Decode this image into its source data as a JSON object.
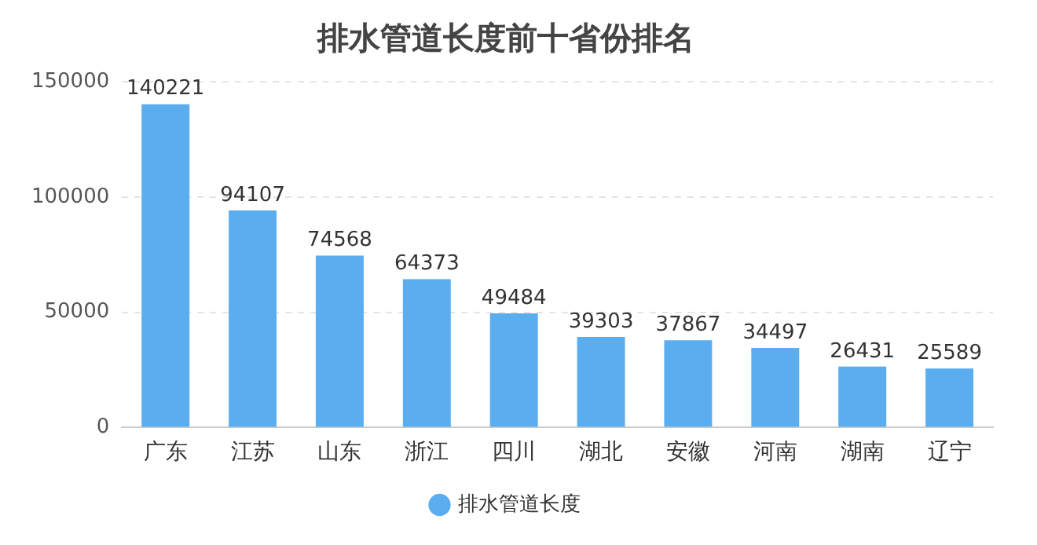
{
  "chart_data": {
    "type": "bar",
    "title": "排水管道长度前十省份排名",
    "categories": [
      "广东",
      "江苏",
      "山东",
      "浙江",
      "四川",
      "湖北",
      "安徽",
      "河南",
      "湖南",
      "辽宁"
    ],
    "series": [
      {
        "name": "排水管道长度",
        "color": "#5aaef0",
        "values": [
          140221,
          94107,
          74568,
          64373,
          49484,
          39303,
          37867,
          34497,
          26431,
          25589
        ]
      }
    ],
    "ylim": [
      0,
      150000
    ],
    "yticks": [
      0,
      50000,
      100000,
      150000
    ],
    "grid": "y",
    "legend": "bottom",
    "data_labels": true
  }
}
